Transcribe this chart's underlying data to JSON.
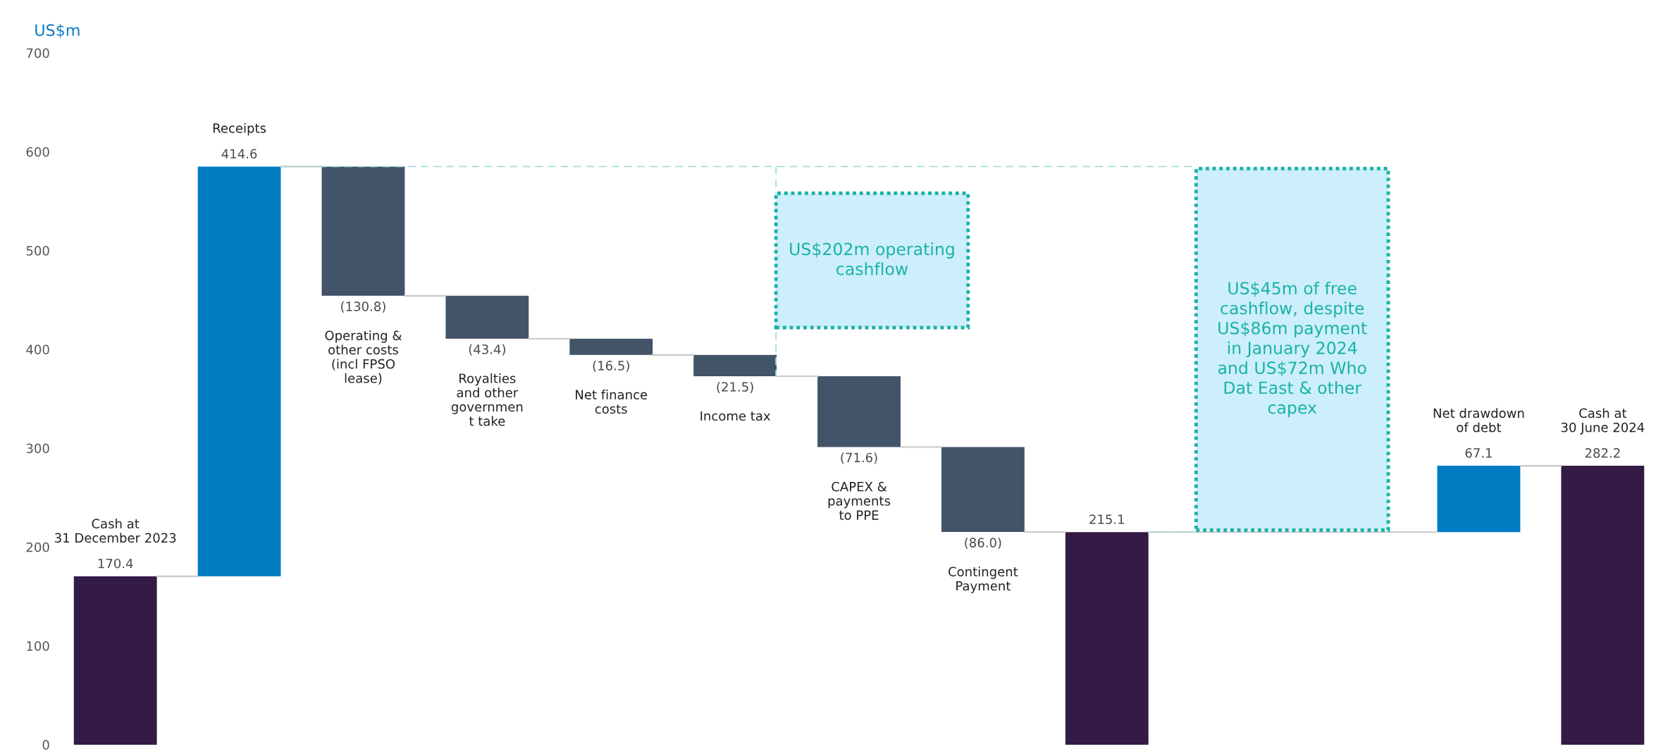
{
  "chart_data": {
    "type": "bar",
    "ylabel": "US$m",
    "categories": [
      "Cash at\n31 December 2023",
      "Receipts",
      "Operating &\nother costs\n(incl FPSO\nlease)",
      "Royalties\nand other\ngovernmen\nt take",
      "Net finance\ncosts",
      "Income tax",
      "CAPEX &\npayments\nto PPE",
      "Contingent\nPayment",
      null,
      null,
      null,
      "Net drawdown\nof debt",
      "Cash at\n30 June 2024"
    ],
    "values": [
      170.4,
      414.6,
      -130.8,
      -43.4,
      -16.5,
      -21.5,
      -71.6,
      -86.0,
      215.1,
      null,
      null,
      67.1,
      282.2
    ],
    "base": [
      0,
      170.4,
      585.0,
      454.2,
      410.8,
      394.3,
      372.8,
      301.2,
      0,
      null,
      null,
      215.1,
      0
    ],
    "colors": [
      "#331b45",
      "#007cc3",
      "#435368",
      "#435368",
      "#435368",
      "#435368",
      "#435368",
      "#435368",
      "#331b45",
      null,
      null,
      "#007cc3",
      "#331b45"
    ],
    "value_labels": [
      "170.4",
      "414.6",
      "(130.8)",
      "(43.4)",
      "(16.5)",
      "(21.5)",
      "(71.6)",
      "(86.0)",
      "215.1",
      null,
      null,
      "67.1",
      "282.2"
    ],
    "annotations": [
      "US$202m operating\ncashflow",
      "US$45m of free\ncashflow, despite\nUS$86m payment\nin January 2024\nand US$72m Who\nDat East & other\ncapex"
    ],
    "ylim": [
      0,
      700
    ],
    "yticks": [
      0,
      100,
      200,
      300,
      400,
      500,
      600,
      700
    ],
    "ref_lines": [
      {
        "axis": "y",
        "value": 585.0,
        "color": "#a5ddd8",
        "line_style": "dashed"
      }
    ],
    "grid": false
  }
}
